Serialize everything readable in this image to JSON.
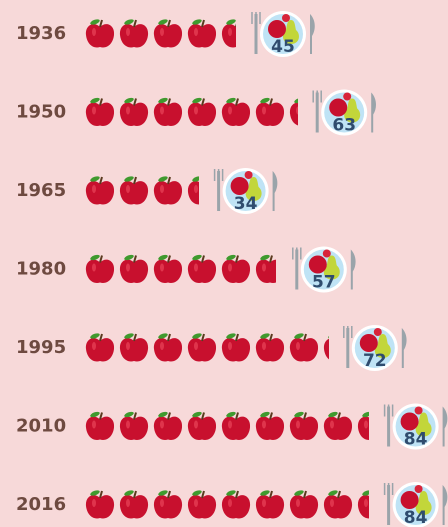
{
  "chart_data": {
    "type": "pictograph",
    "categories": [
      "1936",
      "1950",
      "1965",
      "1980",
      "1995",
      "2010",
      "2016"
    ],
    "values": [
      45,
      63,
      34,
      57,
      72,
      84,
      84
    ],
    "color": "#c8102e"
  }
}
